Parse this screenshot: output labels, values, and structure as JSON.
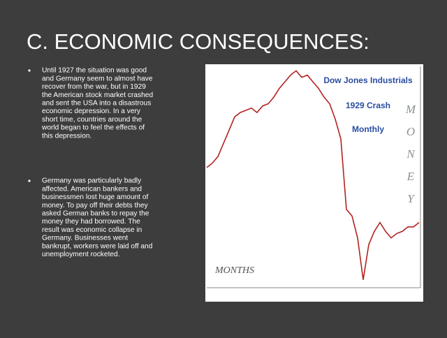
{
  "slide": {
    "title": "C. ECONOMIC CONSEQUENCES:",
    "bullets": [
      {
        "lines": [
          "Until 1927 the situation was good",
          "and Germany seem to almost have",
          "recover from the war, but in 1929",
          "the American stock market crashed",
          "and sent the USA into a disastrous",
          "economic depression. In a very",
          "short time, countries around the",
          "world began to feel the effects of",
          "this depression."
        ]
      },
      {
        "lines": [
          "Germany was particularly badly",
          "affected. American bankers and",
          "businessmen lost huge amount of",
          "money. To pay off their debts they",
          "asked German banks to repay the",
          "money they had borrowed. The",
          "result was economic collapse in",
          "Germany. Businesses went",
          "bankrupt, workers were laid off and",
          "unemployment rocketed."
        ]
      }
    ],
    "chart": {
      "type": "line",
      "legend_lines": [
        "Dow Jones Industrials",
        "1929 Crash",
        "Monthly"
      ],
      "y_label_letters": [
        "M",
        "O",
        "N",
        "E",
        "Y"
      ],
      "x_label": "MONTHS",
      "color": "#b22222",
      "ylim": [
        0,
        100
      ],
      "values": [
        54,
        56,
        59,
        65,
        71,
        77,
        79,
        80,
        81,
        79,
        82,
        83,
        86,
        90,
        93,
        96,
        98,
        95,
        96,
        93,
        90,
        86,
        83,
        76,
        67,
        35,
        32,
        22,
        3,
        19,
        25,
        29,
        25,
        22,
        24,
        25,
        27,
        27,
        29
      ]
    }
  }
}
